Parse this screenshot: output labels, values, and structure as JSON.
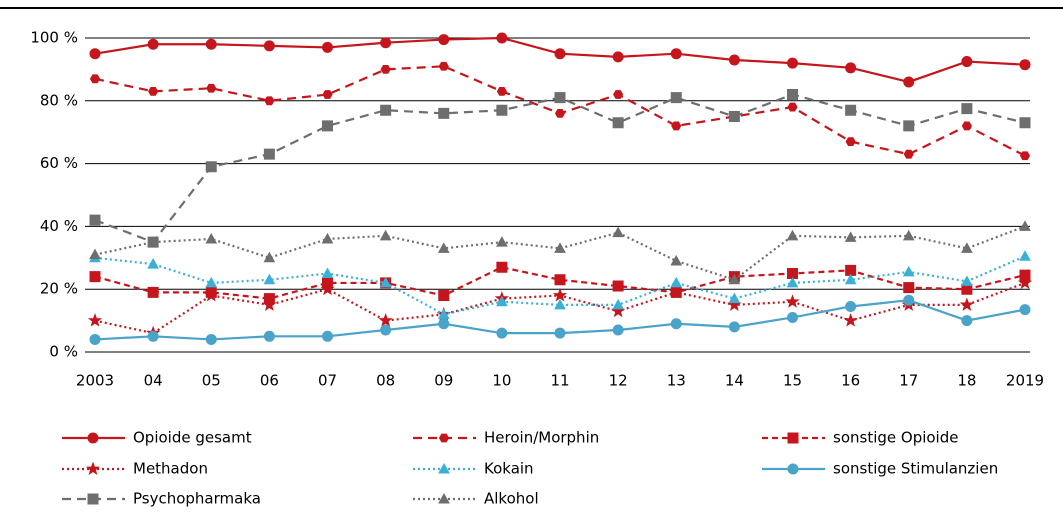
{
  "chart_data": {
    "type": "line",
    "categories": [
      "2003",
      "04",
      "05",
      "06",
      "07",
      "08",
      "09",
      "10",
      "11",
      "12",
      "13",
      "14",
      "15",
      "16",
      "17",
      "18",
      "2019"
    ],
    "ylim": [
      0,
      100
    ],
    "yticks": [
      {
        "value": 0,
        "label": "0 %"
      },
      {
        "value": 20,
        "label": "20 %"
      },
      {
        "value": 40,
        "label": "40 %"
      },
      {
        "value": 60,
        "label": "60 %"
      },
      {
        "value": 80,
        "label": "80 %"
      },
      {
        "value": 100,
        "label": "100 %"
      }
    ],
    "grid": true,
    "legend": "bottom",
    "series": [
      {
        "name": "Opioide gesamt",
        "color": "#c4161c",
        "line_style": "solid",
        "marker": "circle",
        "values": [
          95,
          98,
          98,
          97.5,
          97,
          98.5,
          99.5,
          100,
          95,
          94,
          95,
          93,
          92,
          90.5,
          86,
          92.5,
          91.5
        ]
      },
      {
        "name": "Heroin/Morphin",
        "color": "#c4161c",
        "line_style": "dashed",
        "marker": "hexagon",
        "values": [
          87,
          83,
          84,
          80,
          82,
          90,
          91,
          83,
          76,
          82,
          72,
          75,
          78,
          67,
          63,
          72,
          62.5
        ]
      },
      {
        "name": "sonstige Opioide",
        "color": "#c4161c",
        "line_style": "short-dashed",
        "marker": "square",
        "values": [
          24,
          19,
          19,
          17,
          22,
          22,
          18,
          27,
          23,
          21,
          19,
          24,
          25,
          26,
          20.5,
          20,
          24.5
        ]
      },
      {
        "name": "Methadon",
        "color": "#c4161c",
        "line_style": "dotted",
        "marker": "star",
        "values": [
          10,
          6,
          18,
          15,
          20,
          10,
          12,
          17,
          18,
          13,
          19,
          15,
          16,
          10,
          15,
          15,
          22
        ]
      },
      {
        "name": "Kokain",
        "color": "#3bb0d6",
        "line_style": "dotted",
        "marker": "triangle",
        "values": [
          30,
          28,
          22,
          23,
          25,
          22,
          12,
          16,
          15,
          15,
          22,
          17,
          22,
          23,
          25.5,
          22.5,
          30.5
        ]
      },
      {
        "name": "sonstige Stimulanzien",
        "color": "#4aa3c8",
        "line_style": "solid",
        "marker": "circle",
        "values": [
          4,
          5,
          4,
          5,
          5,
          7,
          9,
          6,
          6,
          7,
          9,
          8,
          11,
          14.5,
          16.5,
          10,
          13.5
        ]
      },
      {
        "name": "Psychopharmaka",
        "color": "#6e6e6e",
        "line_style": "dashed",
        "marker": "square",
        "values": [
          42,
          35,
          59,
          63,
          72,
          77,
          76,
          77,
          81,
          73,
          81,
          75,
          82,
          77,
          72,
          77.5,
          73
        ]
      },
      {
        "name": "Alkohol",
        "color": "#6e6e6e",
        "line_style": "dotted",
        "marker": "triangle",
        "values": [
          31,
          35,
          36,
          30,
          36,
          37,
          33,
          35,
          33,
          38,
          29,
          23,
          37,
          36.5,
          37,
          33,
          40
        ]
      }
    ]
  }
}
